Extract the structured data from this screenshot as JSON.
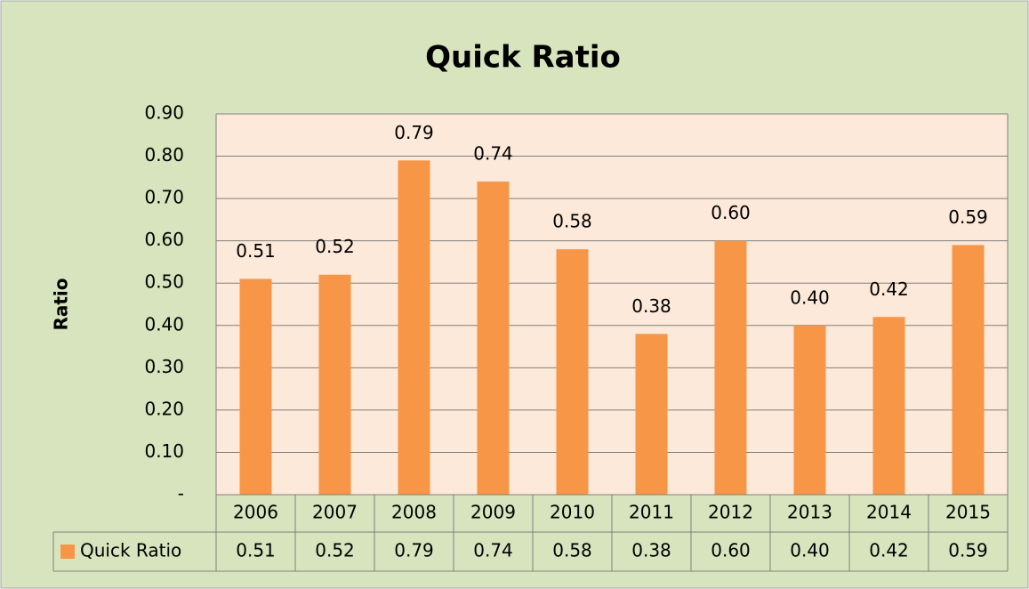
{
  "chart_data": {
    "type": "bar",
    "title": "Quick Ratio",
    "y_label": "Ratio",
    "categories": [
      "2006",
      "2007",
      "2008",
      "2009",
      "2010",
      "2011",
      "2012",
      "2013",
      "2014",
      "2015"
    ],
    "series": [
      {
        "name": "Quick Ratio",
        "color": "#f79646",
        "values": [
          0.51,
          0.52,
          0.79,
          0.74,
          0.58,
          0.38,
          0.6,
          0.4,
          0.42,
          0.59
        ],
        "value_labels": [
          "0.51",
          "0.52",
          "0.79",
          "0.74",
          "0.58",
          "0.38",
          "0.60",
          "0.40",
          "0.42",
          "0.59"
        ]
      }
    ],
    "ylim": [
      0,
      0.9
    ],
    "yticks": [
      {
        "value": 0,
        "label": "-"
      },
      {
        "value": 0.1,
        "label": "0.10"
      },
      {
        "value": 0.2,
        "label": "0.20"
      },
      {
        "value": 0.3,
        "label": "0.30"
      },
      {
        "value": 0.4,
        "label": "0.40"
      },
      {
        "value": 0.5,
        "label": "0.50"
      },
      {
        "value": 0.6,
        "label": "0.60"
      },
      {
        "value": 0.7,
        "label": "0.70"
      },
      {
        "value": 0.8,
        "label": "0.80"
      },
      {
        "value": 0.9,
        "label": "0.90"
      }
    ],
    "grid": true,
    "data_table": true
  }
}
